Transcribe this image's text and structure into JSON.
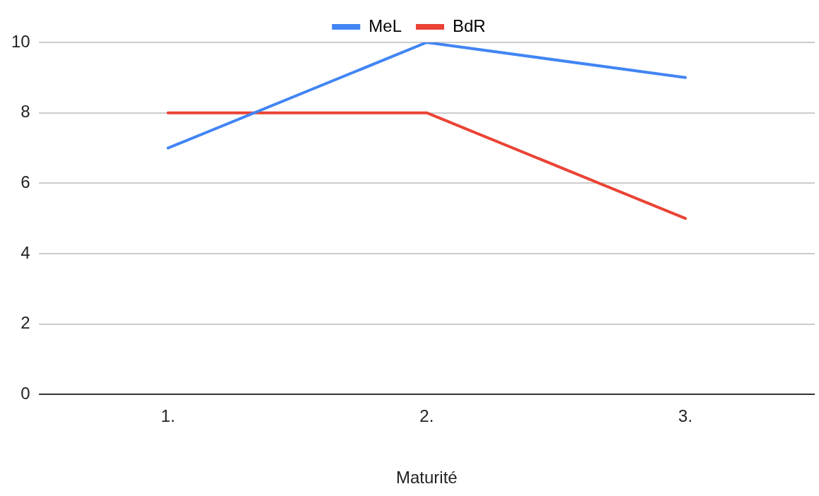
{
  "chart_data": {
    "type": "line",
    "xlabel": "Maturité",
    "categories": [
      "1.",
      "2.",
      "3."
    ],
    "series": [
      {
        "name": "MeL",
        "color": "#4285f4",
        "values": [
          7,
          10,
          9
        ]
      },
      {
        "name": "BdR",
        "color": "#ea4335",
        "values": [
          8,
          8,
          5
        ]
      }
    ],
    "ylim": [
      0,
      10
    ],
    "yticks": [
      0,
      2,
      4,
      6,
      8,
      10
    ],
    "grid": "y",
    "legend": "top",
    "marker": "none",
    "line_style": "solid"
  }
}
